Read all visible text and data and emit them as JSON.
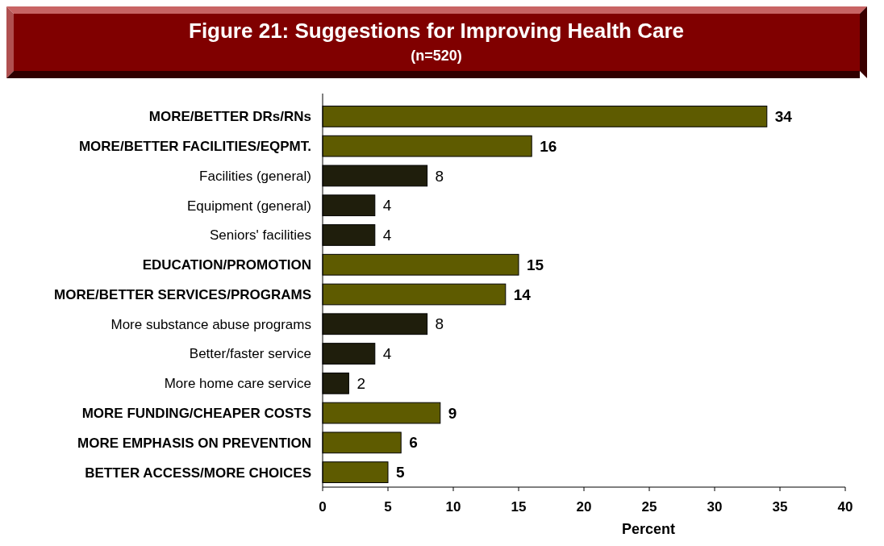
{
  "chart_data": {
    "type": "bar",
    "orientation": "horizontal",
    "title": "Figure 21:  Suggestions for Improving Health Care",
    "subtitle": "(n=520)",
    "xlabel": "Percent",
    "categories": [
      "MORE/BETTER DRs/RNs",
      "MORE/BETTER FACILITIES/EQPMT.",
      "Facilities (general)",
      "Equipment (general)",
      "Seniors' facilities",
      "EDUCATION/PROMOTION",
      "MORE/BETTER SERVICES/PROGRAMS",
      "More substance abuse programs",
      "Better/faster service",
      "More home care service",
      "MORE FUNDING/CHEAPER COSTS",
      "MORE EMPHASIS ON PREVENTION",
      "BETTER ACCESS/MORE CHOICES"
    ],
    "values": [
      34,
      16,
      8,
      4,
      4,
      15,
      14,
      8,
      4,
      2,
      9,
      6,
      5
    ],
    "colors": [
      "#5e5b00",
      "#5e5b00",
      "#1f1e0c",
      "#1f1e0c",
      "#1f1e0c",
      "#5e5b00",
      "#5e5b00",
      "#1f1e0c",
      "#1f1e0c",
      "#1f1e0c",
      "#5e5b00",
      "#5e5b00",
      "#5e5b00"
    ],
    "xlim": [
      0,
      40
    ],
    "xticks": [
      0,
      5,
      10,
      15,
      20,
      25,
      30,
      35,
      40
    ],
    "data_labels": true,
    "grid": false
  }
}
